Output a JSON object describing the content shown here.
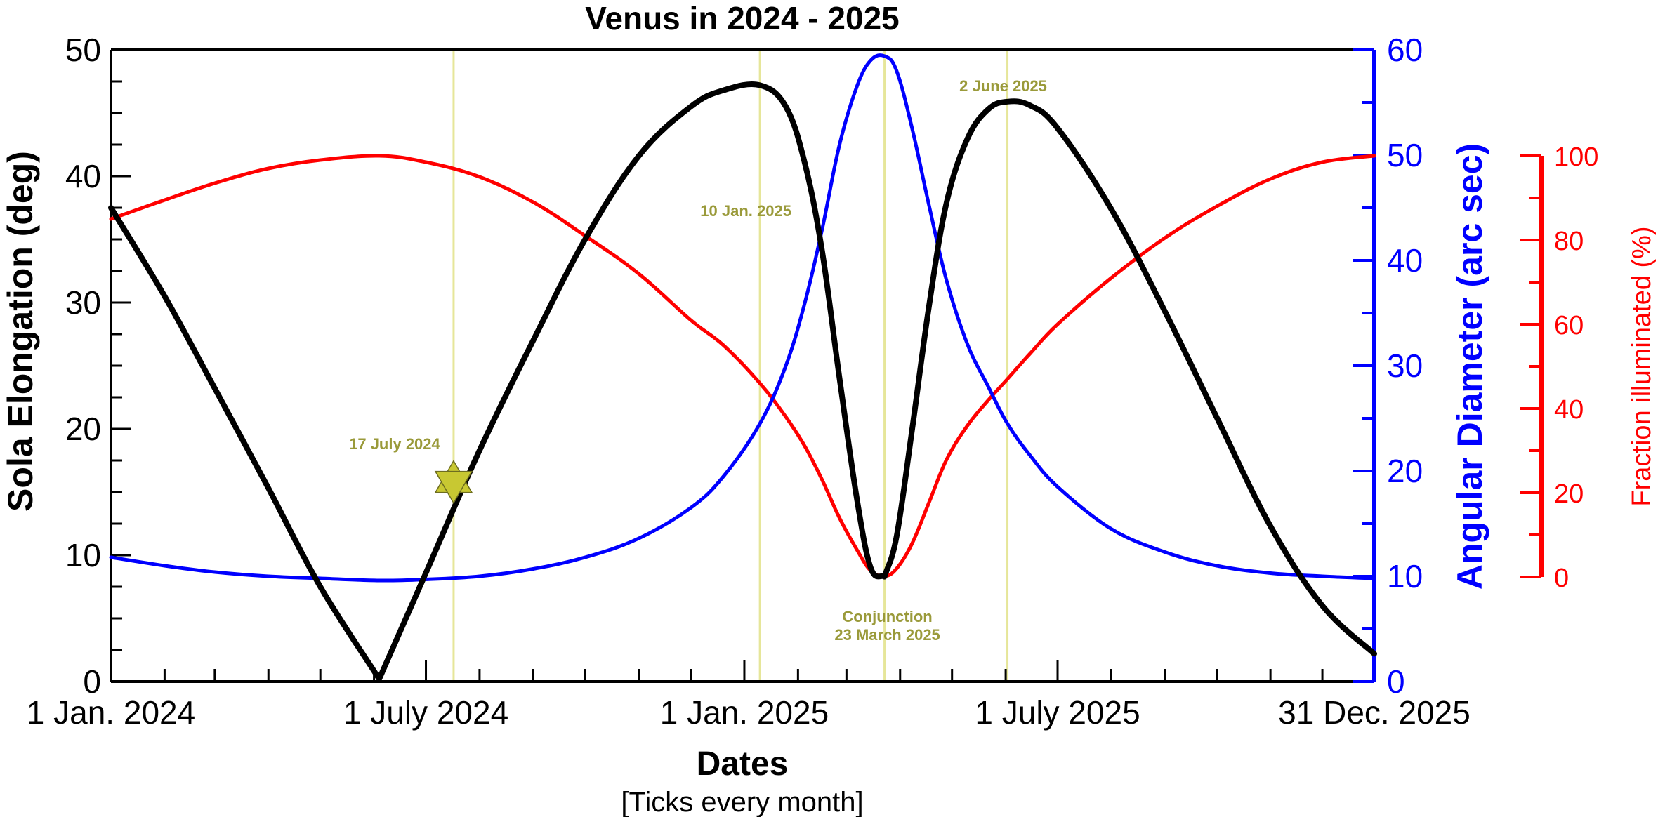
{
  "chart_data": {
    "type": "line",
    "title": "Venus in 2024 - 2025",
    "xlabel": "Dates",
    "xlabel_note": "[Ticks every month]",
    "x_range": [
      "2024-01-01",
      "2025-12-31"
    ],
    "x_tick_labels": [
      {
        "date": "2024-01-01",
        "label": "1 Jan. 2024"
      },
      {
        "date": "2024-07-01",
        "label": "1 July 2024"
      },
      {
        "date": "2025-01-01",
        "label": "1 Jan. 2025"
      },
      {
        "date": "2025-07-01",
        "label": "1 July 2025"
      },
      {
        "date": "2025-12-31",
        "label": "31 Dec. 2025"
      }
    ],
    "axes": {
      "left": {
        "label": "Sola Elongation (deg)",
        "range": [
          0,
          50
        ],
        "ticks": [
          "0",
          "10",
          "20",
          "30",
          "40",
          "50"
        ],
        "color": "#000000"
      },
      "right_blue": {
        "label": "Angular Diameter (arc sec)",
        "range": [
          0,
          60
        ],
        "ticks": [
          "0",
          "10",
          "20",
          "30",
          "40",
          "50",
          "60"
        ],
        "color": "#0000ff"
      },
      "right_red": {
        "label": "Fraction illuminated (%)",
        "range": [
          0,
          100
        ],
        "ticks": [
          "0",
          "20",
          "40",
          "60",
          "80",
          "100"
        ],
        "color": "#ff0000"
      }
    },
    "series": [
      {
        "axis": "left",
        "color": "#000000",
        "points": [
          [
            "2024-01-01",
            37.5
          ],
          [
            "2024-02-01",
            30.5
          ],
          [
            "2024-03-01",
            23.2
          ],
          [
            "2024-04-01",
            15.3
          ],
          [
            "2024-05-01",
            7.5
          ],
          [
            "2024-06-04",
            0.2
          ],
          [
            "2024-07-01",
            8.6
          ],
          [
            "2024-08-01",
            18.3
          ],
          [
            "2024-09-01",
            27.0
          ],
          [
            "2024-10-01",
            35.0
          ],
          [
            "2024-11-01",
            41.6
          ],
          [
            "2024-12-01",
            45.5
          ],
          [
            "2024-12-20",
            46.8
          ],
          [
            "2025-01-10",
            47.2
          ],
          [
            "2025-01-25",
            45.5
          ],
          [
            "2025-02-05",
            41.0
          ],
          [
            "2025-02-15",
            34.0
          ],
          [
            "2025-02-25",
            24.0
          ],
          [
            "2025-03-07",
            14.5
          ],
          [
            "2025-03-15",
            9.0
          ],
          [
            "2025-03-23",
            8.3
          ],
          [
            "2025-03-30",
            11.5
          ],
          [
            "2025-04-08",
            20.0
          ],
          [
            "2025-04-18",
            30.0
          ],
          [
            "2025-04-28",
            38.0
          ],
          [
            "2025-05-10",
            43.0
          ],
          [
            "2025-05-22",
            45.3
          ],
          [
            "2025-06-02",
            45.9
          ],
          [
            "2025-06-15",
            45.6
          ],
          [
            "2025-07-01",
            43.8
          ],
          [
            "2025-08-01",
            37.4
          ],
          [
            "2025-09-01",
            29.3
          ],
          [
            "2025-10-01",
            20.9
          ],
          [
            "2025-11-01",
            12.3
          ],
          [
            "2025-12-01",
            6.0
          ],
          [
            "2025-12-31",
            2.2
          ]
        ]
      },
      {
        "axis": "right_blue",
        "color": "#0000ff",
        "points": [
          [
            "2024-01-01",
            11.8
          ],
          [
            "2024-02-01",
            11.0
          ],
          [
            "2024-03-01",
            10.4
          ],
          [
            "2024-04-01",
            10.0
          ],
          [
            "2024-05-01",
            9.8
          ],
          [
            "2024-06-04",
            9.6
          ],
          [
            "2024-07-01",
            9.7
          ],
          [
            "2024-08-01",
            10.0
          ],
          [
            "2024-09-01",
            10.7
          ],
          [
            "2024-10-01",
            11.8
          ],
          [
            "2024-11-01",
            13.6
          ],
          [
            "2024-12-01",
            16.5
          ],
          [
            "2024-12-20",
            19.5
          ],
          [
            "2025-01-10",
            24.5
          ],
          [
            "2025-01-25",
            30.0
          ],
          [
            "2025-02-05",
            36.0
          ],
          [
            "2025-02-15",
            43.0
          ],
          [
            "2025-02-25",
            51.0
          ],
          [
            "2025-03-07",
            56.5
          ],
          [
            "2025-03-15",
            59.0
          ],
          [
            "2025-03-23",
            59.4
          ],
          [
            "2025-03-30",
            58.0
          ],
          [
            "2025-04-08",
            52.5
          ],
          [
            "2025-04-18",
            45.0
          ],
          [
            "2025-04-28",
            38.0
          ],
          [
            "2025-05-10",
            32.0
          ],
          [
            "2025-05-22",
            28.0
          ],
          [
            "2025-06-02",
            24.5
          ],
          [
            "2025-06-15",
            21.5
          ],
          [
            "2025-07-01",
            18.5
          ],
          [
            "2025-08-01",
            14.5
          ],
          [
            "2025-09-01",
            12.3
          ],
          [
            "2025-10-01",
            11.0
          ],
          [
            "2025-11-01",
            10.3
          ],
          [
            "2025-12-01",
            10.0
          ],
          [
            "2025-12-31",
            9.8
          ]
        ]
      },
      {
        "axis": "right_red",
        "color": "#ff0000",
        "points": [
          [
            "2024-01-01",
            85.0
          ],
          [
            "2024-02-01",
            89.5
          ],
          [
            "2024-03-01",
            93.5
          ],
          [
            "2024-04-01",
            97.0
          ],
          [
            "2024-05-01",
            99.0
          ],
          [
            "2024-06-04",
            100.0
          ],
          [
            "2024-07-01",
            98.5
          ],
          [
            "2024-08-01",
            95.0
          ],
          [
            "2024-09-01",
            89.0
          ],
          [
            "2024-10-01",
            81.0
          ],
          [
            "2024-11-01",
            72.0
          ],
          [
            "2024-12-01",
            61.0
          ],
          [
            "2024-12-20",
            55.0
          ],
          [
            "2025-01-10",
            46.0
          ],
          [
            "2025-01-25",
            38.0
          ],
          [
            "2025-02-05",
            31.0
          ],
          [
            "2025-02-15",
            23.0
          ],
          [
            "2025-02-25",
            14.0
          ],
          [
            "2025-03-07",
            6.5
          ],
          [
            "2025-03-15",
            1.5
          ],
          [
            "2025-03-23",
            0.2
          ],
          [
            "2025-03-30",
            2.0
          ],
          [
            "2025-04-08",
            8.0
          ],
          [
            "2025-04-18",
            18.0
          ],
          [
            "2025-04-28",
            28.0
          ],
          [
            "2025-05-10",
            36.0
          ],
          [
            "2025-05-22",
            42.0
          ],
          [
            "2025-06-02",
            47.0
          ],
          [
            "2025-06-15",
            53.0
          ],
          [
            "2025-07-01",
            60.0
          ],
          [
            "2025-08-01",
            71.0
          ],
          [
            "2025-09-01",
            80.5
          ],
          [
            "2025-10-01",
            88.0
          ],
          [
            "2025-11-01",
            94.5
          ],
          [
            "2025-12-01",
            98.5
          ],
          [
            "2025-12-31",
            100.0
          ]
        ]
      }
    ],
    "event_lines": [
      {
        "date": "2024-07-17",
        "label": "17 July 2024"
      },
      {
        "date": "2025-01-10",
        "label": "10 Jan. 2025"
      },
      {
        "date": "2025-03-23",
        "label": "Conjunction",
        "label2": "23 March 2025"
      },
      {
        "date": "2025-06-02",
        "label": "2 June 2025"
      }
    ],
    "star_marker": {
      "date": "2024-07-17",
      "y": 15.8,
      "axis": "left",
      "color": "#c8c832"
    },
    "event_line_color": "#e6e69a",
    "annotation_color": "#9a9a3a"
  }
}
